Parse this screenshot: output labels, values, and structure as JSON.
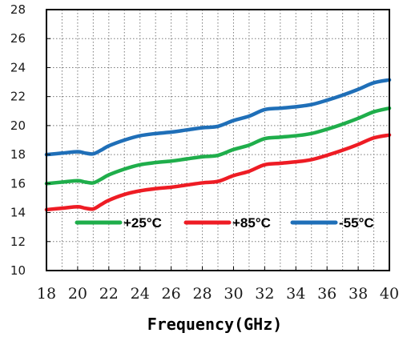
{
  "chart_data": {
    "type": "line",
    "title": "",
    "xlabel": "Frequency(GHz)",
    "ylabel": "",
    "xlim": [
      18,
      40
    ],
    "ylim": [
      10,
      28
    ],
    "x_ticks": [
      18,
      20,
      22,
      24,
      26,
      28,
      30,
      32,
      34,
      36,
      38,
      40
    ],
    "y_ticks": [
      10,
      12,
      14,
      16,
      18,
      20,
      22,
      24,
      26,
      28
    ],
    "grid": "dotted, every 1 unit in x and 2 units in y",
    "legend_position": "inside-bottom",
    "series": [
      {
        "name": "+25°C",
        "color": "#1fae4b",
        "x": [
          18,
          19,
          20,
          20.5,
          21,
          21.5,
          22,
          23,
          24,
          25,
          26,
          27,
          28,
          29,
          30,
          31,
          32,
          33,
          34,
          35,
          36,
          37,
          38,
          39,
          40
        ],
        "y": [
          16.0,
          16.1,
          16.2,
          16.1,
          16.05,
          16.3,
          16.6,
          17.0,
          17.3,
          17.45,
          17.55,
          17.7,
          17.85,
          17.95,
          18.35,
          18.65,
          19.1,
          19.2,
          19.3,
          19.45,
          19.75,
          20.1,
          20.5,
          20.95,
          21.2
        ]
      },
      {
        "name": "+85°C",
        "color": "#ee1c24",
        "x": [
          18,
          19,
          20,
          20.5,
          21,
          21.5,
          22,
          23,
          24,
          25,
          26,
          27,
          28,
          29,
          30,
          31,
          32,
          33,
          34,
          35,
          36,
          37,
          38,
          39,
          40
        ],
        "y": [
          14.2,
          14.3,
          14.4,
          14.3,
          14.25,
          14.55,
          14.85,
          15.25,
          15.5,
          15.65,
          15.75,
          15.9,
          16.05,
          16.15,
          16.55,
          16.85,
          17.3,
          17.4,
          17.5,
          17.65,
          17.95,
          18.3,
          18.7,
          19.15,
          19.35
        ]
      },
      {
        "name": "-55°C",
        "color": "#1f6fb8",
        "x": [
          18,
          19,
          20,
          20.5,
          21,
          21.5,
          22,
          23,
          24,
          25,
          26,
          27,
          28,
          29,
          30,
          31,
          32,
          33,
          34,
          35,
          36,
          37,
          38,
          39,
          40
        ],
        "y": [
          18.0,
          18.1,
          18.2,
          18.1,
          18.05,
          18.3,
          18.6,
          19.0,
          19.3,
          19.45,
          19.55,
          19.7,
          19.85,
          19.95,
          20.35,
          20.65,
          21.1,
          21.2,
          21.3,
          21.45,
          21.75,
          22.1,
          22.5,
          22.95,
          23.15
        ]
      }
    ]
  }
}
